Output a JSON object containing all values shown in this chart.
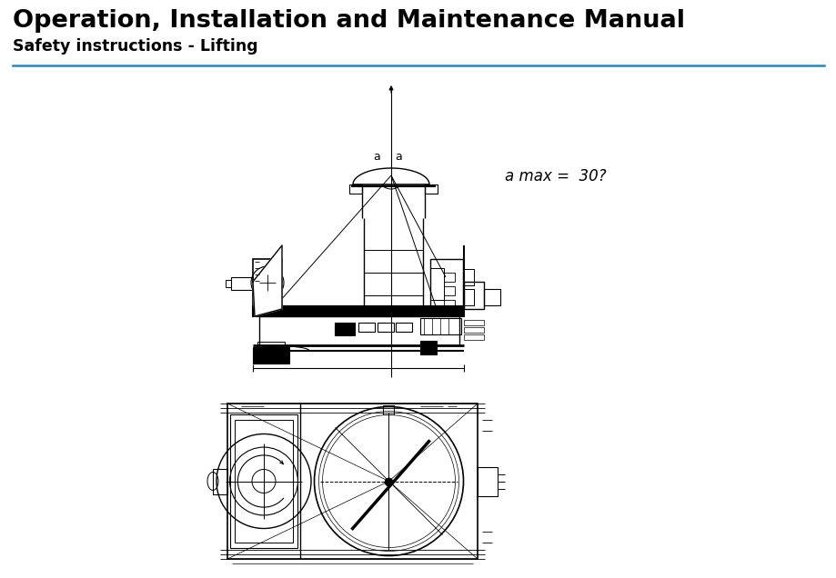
{
  "title": "Operation, Installation and Maintenance Manual",
  "subtitle": "Safety instructions - Lifting",
  "annotation": "a max =  30?",
  "bg_color": "#ffffff",
  "title_color": "#000000",
  "subtitle_color": "#000000",
  "line_color": "#2e86b8",
  "title_fontsize": 19.5,
  "subtitle_fontsize": 12.5,
  "annotation_fontsize": 12,
  "fig_width": 9.2,
  "fig_height": 6.36
}
